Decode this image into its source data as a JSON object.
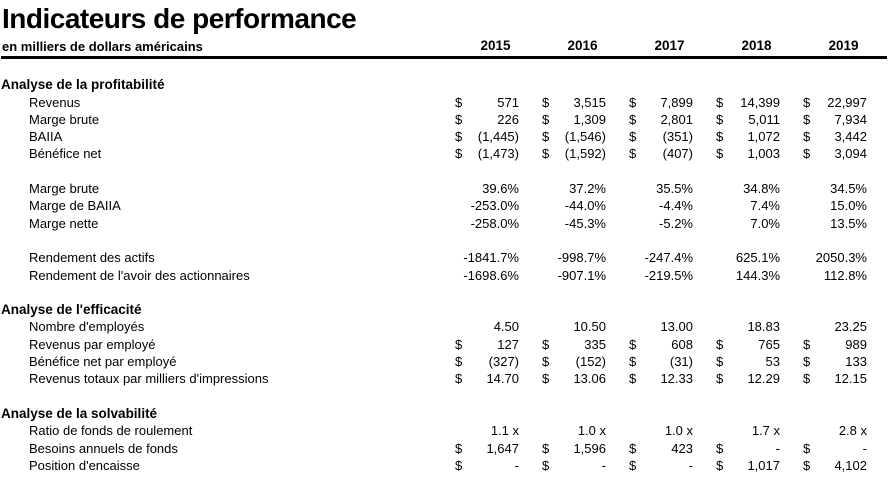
{
  "title": "Indicateurs de performance",
  "subtitle": "en milliers de dollars américains",
  "currency_symbol": "$",
  "columns": [
    "2015",
    "2016",
    "2017",
    "2018",
    "2019"
  ],
  "colors": {
    "text": "#000000",
    "background": "#ffffff",
    "header_rule": "#000000"
  },
  "sections": [
    {
      "heading": "Analyse de la profitabilité",
      "rows": [
        {
          "label": "Revenus",
          "currency": true,
          "values": [
            "571",
            "3,515",
            "7,899",
            "14,399",
            "22,997"
          ]
        },
        {
          "label": "Marge brute",
          "currency": true,
          "values": [
            "226",
            "1,309",
            "2,801",
            "5,011",
            "7,934"
          ]
        },
        {
          "label": "BAIIA",
          "currency": true,
          "values": [
            "(1,445)",
            "(1,546)",
            "(351)",
            "1,072",
            "3,442"
          ]
        },
        {
          "label": "Bénéfice net",
          "currency": true,
          "values": [
            "(1,473)",
            "(1,592)",
            "(407)",
            "1,003",
            "3,094"
          ]
        },
        {
          "spacer": true
        },
        {
          "label": "Marge brute",
          "currency": false,
          "values": [
            "39.6%",
            "37.2%",
            "35.5%",
            "34.8%",
            "34.5%"
          ]
        },
        {
          "label": "Marge de BAIIA",
          "currency": false,
          "values": [
            "-253.0%",
            "-44.0%",
            "-4.4%",
            "7.4%",
            "15.0%"
          ]
        },
        {
          "label": "Marge nette",
          "currency": false,
          "values": [
            "-258.0%",
            "-45.3%",
            "-5.2%",
            "7.0%",
            "13.5%"
          ]
        },
        {
          "spacer": true
        },
        {
          "label": "Rendement des actifs",
          "currency": false,
          "values": [
            "-1841.7%",
            "-998.7%",
            "-247.4%",
            "625.1%",
            "2050.3%"
          ]
        },
        {
          "label": "Rendement de l'avoir des actionnaires",
          "currency": false,
          "values": [
            "-1698.6%",
            "-907.1%",
            "-219.5%",
            "144.3%",
            "112.8%"
          ]
        }
      ]
    },
    {
      "heading": "Analyse de l'efficacité",
      "rows": [
        {
          "label": "Nombre d'employés",
          "currency": false,
          "values": [
            "4.50",
            "10.50",
            "13.00",
            "18.83",
            "23.25"
          ]
        },
        {
          "label": "Revenus par employé",
          "currency": true,
          "values": [
            "127",
            "335",
            "608",
            "765",
            "989"
          ]
        },
        {
          "label": "Bénéfice net par employé",
          "currency": true,
          "values": [
            "(327)",
            "(152)",
            "(31)",
            "53",
            "133"
          ]
        },
        {
          "label": "Revenus totaux par milliers d'impressions",
          "currency": true,
          "values": [
            "14.70",
            "13.06",
            "12.33",
            "12.29",
            "12.15"
          ]
        }
      ]
    },
    {
      "heading": "Analyse de la solvabilité",
      "rows": [
        {
          "label": "Ratio de fonds de roulement",
          "currency": false,
          "values": [
            "1.1 x",
            "1.0 x",
            "1.0 x",
            "1.7 x",
            "2.8 x"
          ]
        },
        {
          "label": "Besoins annuels de fonds",
          "currency": true,
          "values": [
            "1,647",
            "1,596",
            "423",
            "-",
            "-"
          ]
        },
        {
          "label": "Position d'encaisse",
          "currency": true,
          "values": [
            "-",
            "-",
            "-",
            "1,017",
            "4,102"
          ]
        }
      ]
    }
  ]
}
